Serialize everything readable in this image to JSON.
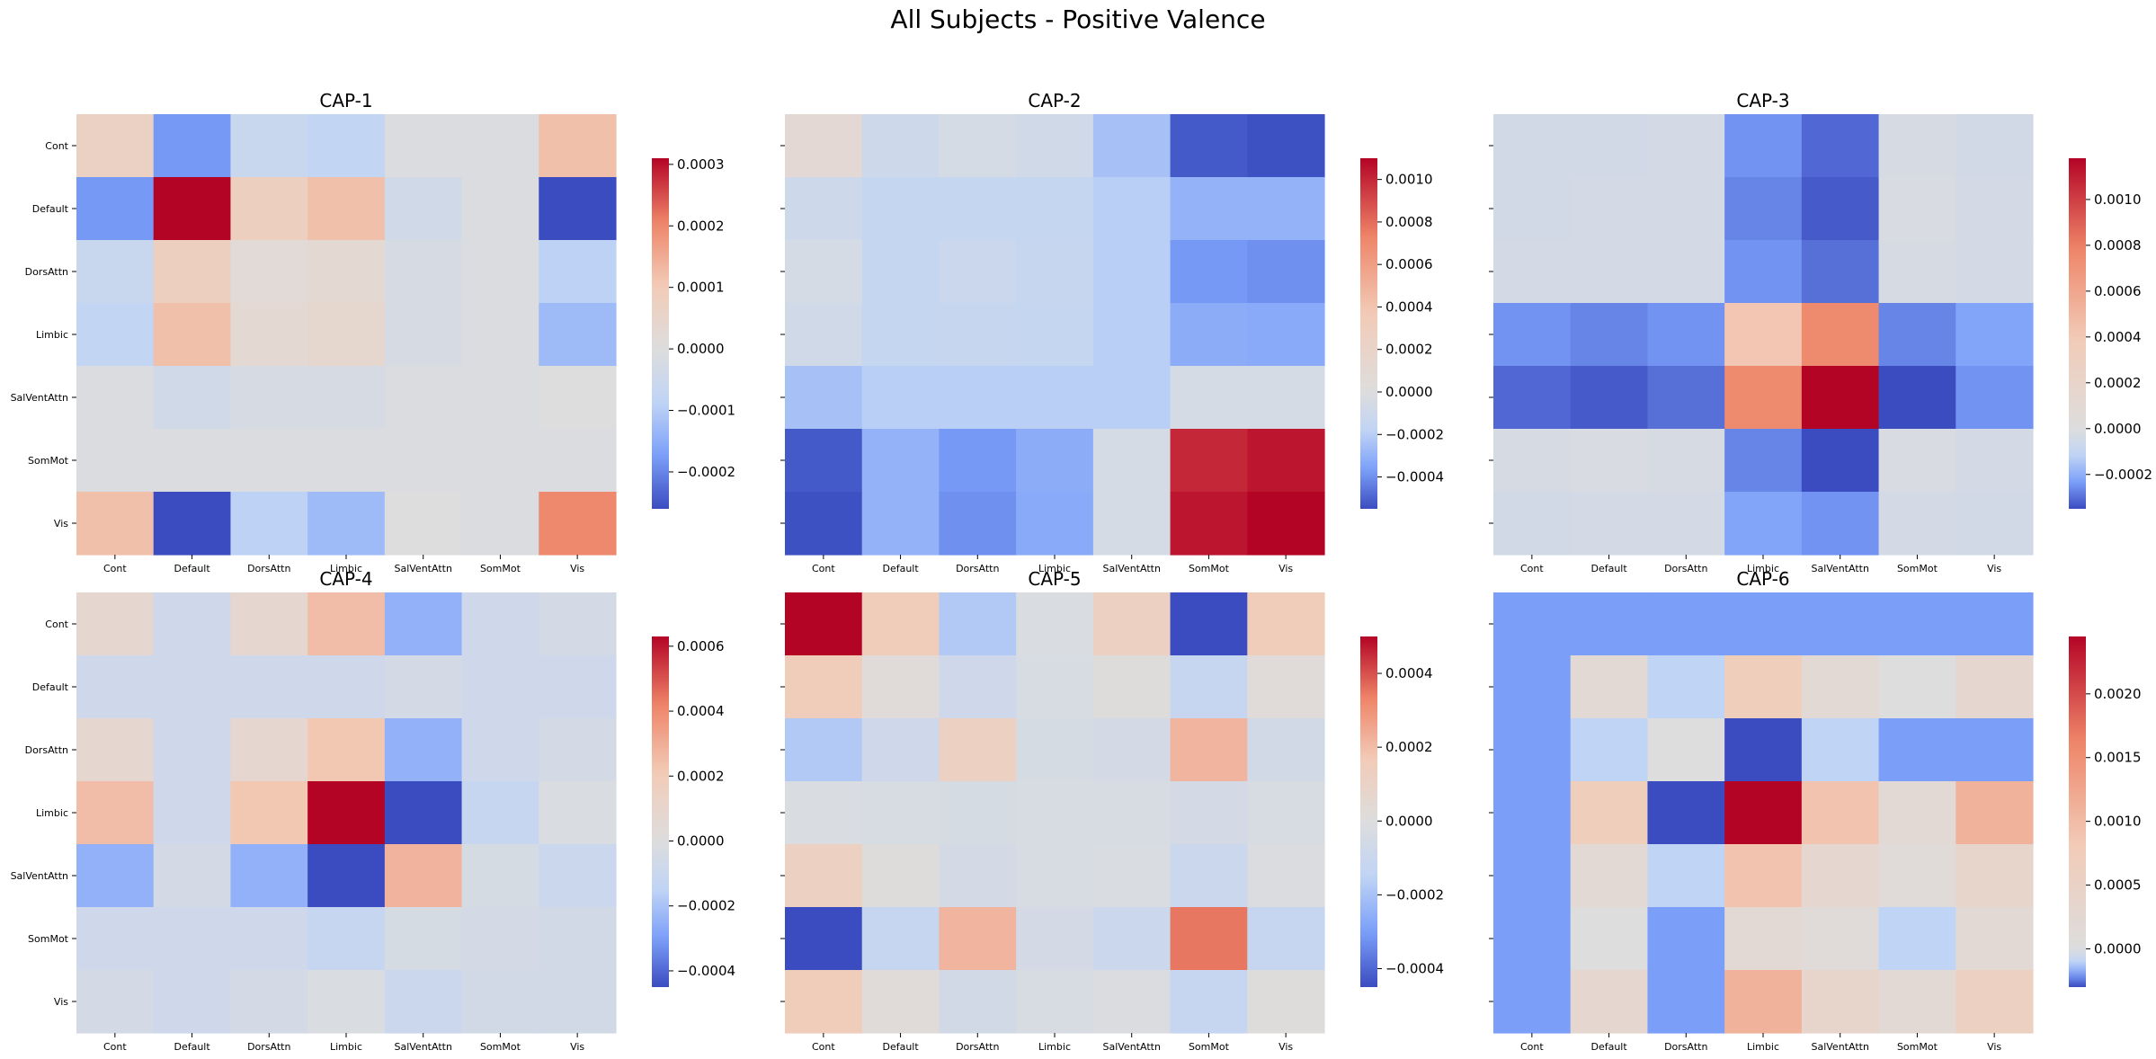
{
  "chart_data": {
    "type": "heatmap",
    "title": "All Subjects - Positive Valence",
    "colormap": "coolwarm",
    "colormap_stops": [
      "#3b4cc0",
      "#7b9ff9",
      "#c0d4f5",
      "#dddddd",
      "#f2cbb7",
      "#ee8468",
      "#b40426"
    ],
    "labels": [
      "Cont",
      "Default",
      "DorsAttn",
      "Limbic",
      "SalVentAttn",
      "SomMot",
      "Vis"
    ],
    "panels": [
      {
        "title": "CAP-1",
        "vmin": -0.00026,
        "vmax": 0.00031,
        "colorbar_ticks": [
          -0.0002,
          -0.0001,
          0.0,
          0.0001,
          0.0002,
          0.0003
        ],
        "colorbar_labels": [
          "−0.0002",
          "−0.0001",
          "0.0000",
          "0.0001",
          "0.0002",
          "0.0003"
        ],
        "matrix": [
          [
            7e-05,
            -0.00018,
            -6e-05,
            -8e-05,
            -1e-05,
            -1e-05,
            0.00012
          ],
          [
            -0.00018,
            0.00031,
            8e-05,
            0.00012,
            -4e-05,
            -1e-05,
            -0.00026
          ],
          [
            -6e-05,
            8e-05,
            2e-05,
            3e-05,
            -2e-05,
            -1e-05,
            -9e-05
          ],
          [
            -8e-05,
            0.00012,
            3e-05,
            4e-05,
            -2e-05,
            -1e-05,
            -0.00013
          ],
          [
            -1e-05,
            -4e-05,
            -2e-05,
            -2e-05,
            -1e-05,
            -1e-05,
            0.0
          ],
          [
            -1e-05,
            -1e-05,
            -1e-05,
            -1e-05,
            -1e-05,
            -1e-05,
            -1e-05
          ],
          [
            0.00012,
            -0.00026,
            -9e-05,
            -0.00013,
            0.0,
            -1e-05,
            0.0002
          ]
        ]
      },
      {
        "title": "CAP-2",
        "vmin": -0.00055,
        "vmax": 0.0011,
        "colorbar_ticks": [
          -0.0004,
          -0.0002,
          0.0,
          0.0002,
          0.0004,
          0.0006,
          0.0008,
          0.001
        ],
        "colorbar_labels": [
          "−0.0004",
          "−0.0002",
          "0.0000",
          "0.0002",
          "0.0004",
          "0.0006",
          "0.0008",
          "0.0010"
        ],
        "matrix": [
          [
            0.0001,
            -0.0001,
            -5e-05,
            -8e-05,
            -0.00025,
            -0.00052,
            -0.00054
          ],
          [
            -0.0001,
            -0.00015,
            -0.00015,
            -0.00015,
            -0.0002,
            -0.0003,
            -0.0003
          ],
          [
            -5e-05,
            -0.00015,
            -0.00012,
            -0.00014,
            -0.0002,
            -0.00038,
            -0.0004
          ],
          [
            -8e-05,
            -0.00015,
            -0.00014,
            -0.00015,
            -0.0002,
            -0.00032,
            -0.00033
          ],
          [
            -0.00025,
            -0.0002,
            -0.0002,
            -0.0002,
            -0.0002,
            -5e-05,
            -5e-05
          ],
          [
            -0.00052,
            -0.0003,
            -0.00038,
            -0.00032,
            -5e-05,
            0.001,
            0.00105
          ],
          [
            -0.00054,
            -0.0003,
            -0.0004,
            -0.00033,
            -5e-05,
            0.00105,
            0.0011
          ]
        ]
      },
      {
        "title": "CAP-3",
        "vmin": -0.00035,
        "vmax": 0.00118,
        "colorbar_ticks": [
          -0.0002,
          0.0,
          0.0002,
          0.0004,
          0.0006,
          0.0008,
          0.001
        ],
        "colorbar_labels": [
          "−0.0002",
          "0.0000",
          "0.0002",
          "0.0004",
          "0.0006",
          "0.0008",
          "0.0010"
        ],
        "matrix": [
          [
            -5e-05,
            -5e-05,
            -4e-05,
            -0.00025,
            -0.00031,
            -3e-05,
            -5e-05
          ],
          [
            -5e-05,
            -4e-05,
            -4e-05,
            -0.00027,
            -0.00033,
            -2e-05,
            -4e-05
          ],
          [
            -4e-05,
            -4e-05,
            -4e-05,
            -0.00025,
            -0.0003,
            -3e-05,
            -4e-05
          ],
          [
            -0.00025,
            -0.00027,
            -0.00025,
            0.00042,
            0.00075,
            -0.00027,
            -0.00022
          ],
          [
            -0.00031,
            -0.00033,
            -0.0003,
            0.00075,
            0.00118,
            -0.00035,
            -0.00025
          ],
          [
            -3e-05,
            -2e-05,
            -3e-05,
            -0.00027,
            -0.00035,
            -2e-05,
            -4e-05
          ],
          [
            -5e-05,
            -4e-05,
            -4e-05,
            -0.00022,
            -0.00025,
            -4e-05,
            -5e-05
          ]
        ]
      },
      {
        "title": "CAP-4",
        "vmin": -0.00045,
        "vmax": 0.00063,
        "colorbar_ticks": [
          -0.0004,
          -0.0002,
          0.0,
          0.0002,
          0.0004,
          0.0006
        ],
        "colorbar_labels": [
          "−0.0004",
          "−0.0002",
          "0.0000",
          "0.0002",
          "0.0004",
          "0.0006"
        ],
        "matrix": [
          [
            8e-05,
            -8e-05,
            8e-05,
            0.00025,
            -0.00025,
            -8e-05,
            -5e-05
          ],
          [
            -8e-05,
            -8e-05,
            -8e-05,
            -8e-05,
            -5e-05,
            -8e-05,
            -8e-05
          ],
          [
            8e-05,
            -8e-05,
            8e-05,
            0.00022,
            -0.00025,
            -8e-05,
            -5e-05
          ],
          [
            0.00025,
            -8e-05,
            0.00022,
            0.00063,
            -0.00045,
            -0.00012,
            -2e-05
          ],
          [
            -0.00025,
            -5e-05,
            -0.00025,
            -0.00045,
            0.00028,
            -4e-05,
            -0.0001
          ],
          [
            -8e-05,
            -8e-05,
            -8e-05,
            -0.00012,
            -4e-05,
            -5e-05,
            -6e-05
          ],
          [
            -5e-05,
            -8e-05,
            -5e-05,
            -2e-05,
            -0.0001,
            -6e-05,
            -6e-05
          ]
        ]
      },
      {
        "title": "CAP-5",
        "vmin": -0.00045,
        "vmax": 0.0005,
        "colorbar_ticks": [
          -0.0004,
          -0.0002,
          0.0,
          0.0002,
          0.0004
        ],
        "colorbar_labels": [
          "−0.0004",
          "−0.0002",
          "0.0000",
          "0.0002",
          "0.0004"
        ],
        "matrix": [
          [
            0.0005,
            0.00015,
            -0.00018,
            -2e-05,
            0.00012,
            -0.00045,
            0.00015
          ],
          [
            0.00015,
            2e-05,
            -8e-05,
            -3e-05,
            1e-05,
            -0.00012,
            2e-05
          ],
          [
            -0.00018,
            -8e-05,
            0.00012,
            -4e-05,
            -5e-05,
            0.00022,
            -6e-05
          ],
          [
            -2e-05,
            -3e-05,
            -4e-05,
            -3e-05,
            -3e-05,
            -5e-05,
            -3e-05
          ],
          [
            0.00012,
            1e-05,
            -5e-05,
            -3e-05,
            -2e-05,
            -0.0001,
            -1e-05
          ],
          [
            -0.00045,
            -0.00012,
            0.00022,
            -5e-05,
            -0.0001,
            0.00035,
            -0.00012
          ],
          [
            0.00015,
            2e-05,
            -6e-05,
            -3e-05,
            -1e-05,
            -0.00012,
            1e-05
          ]
        ]
      },
      {
        "title": "CAP-6",
        "vmin": -0.0003,
        "vmax": 0.00245,
        "colorbar_ticks": [
          0.0,
          0.0005,
          0.001,
          0.0015,
          0.002
        ],
        "colorbar_labels": [
          "0.0000",
          "0.0005",
          "0.0010",
          "0.0015",
          "0.0020"
        ],
        "matrix": [
          [
            -0.0002,
            -0.0002,
            -0.0002,
            -0.0002,
            -0.0002,
            -0.0002,
            -0.0002
          ],
          [
            -0.0002,
            0.0002,
            -0.0001,
            0.0007,
            0.0002,
            0.0,
            0.0003
          ],
          [
            -0.0002,
            -0.0001,
            0.0,
            -0.0003,
            -0.0001,
            -0.0002,
            -0.0002
          ],
          [
            -0.0002,
            0.0007,
            -0.0003,
            0.00245,
            0.0009,
            0.0002,
            0.0011
          ],
          [
            -0.0002,
            0.0002,
            -0.0001,
            0.0009,
            0.0003,
            0.0001,
            0.0004
          ],
          [
            -0.0002,
            0.0,
            -0.0002,
            0.0002,
            0.0001,
            -0.0001,
            0.0002
          ],
          [
            -0.0002,
            0.0003,
            -0.0002,
            0.0011,
            0.0004,
            0.0002,
            0.0006
          ]
        ]
      }
    ]
  }
}
